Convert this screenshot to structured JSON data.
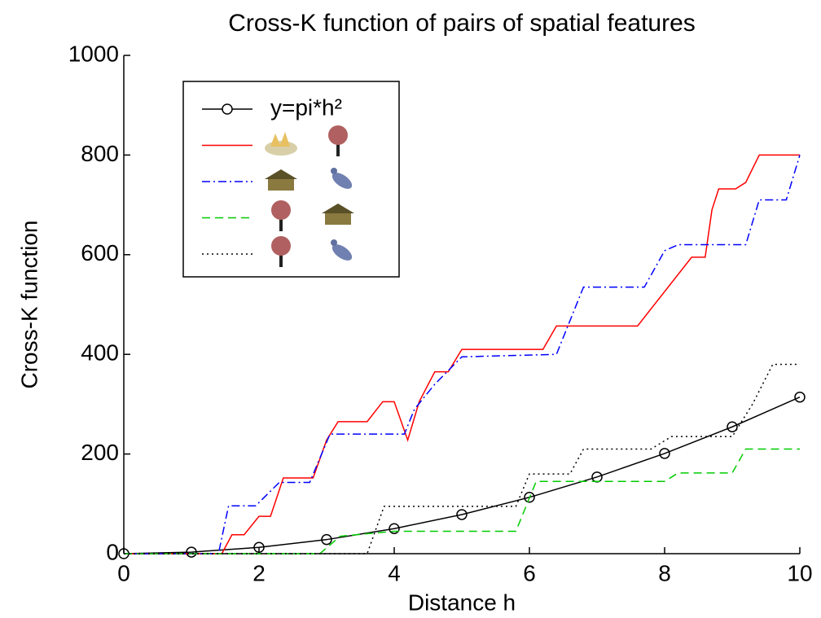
{
  "chart_data": {
    "type": "line",
    "title": "Cross-K function of pairs of spatial features",
    "x_label": "Distance h",
    "y_label": "Cross-K function",
    "xlim": [
      0,
      10
    ],
    "xticks": [
      0,
      2,
      4,
      6,
      8,
      10
    ],
    "ylim": [
      0,
      1000
    ],
    "yticks": [
      0,
      200,
      400,
      600,
      800,
      1000
    ],
    "grid": false,
    "legend": "upper-left",
    "series": [
      {
        "name": "y=pi*h²",
        "color": "#000000",
        "linestyle": "solid",
        "marker": "o",
        "x": [
          0,
          1,
          2,
          3,
          4,
          5,
          6,
          7,
          8,
          9,
          10
        ],
        "values": [
          0,
          3.14,
          12.6,
          28.3,
          50.3,
          78.5,
          113.1,
          153.9,
          201.1,
          254.5,
          314.2
        ]
      },
      {
        "color": "#ff0000",
        "linestyle": "solid",
        "x": [
          0,
          1.45,
          1.6,
          1.78,
          2.0,
          2.17,
          2.36,
          2.8,
          3.0,
          3.17,
          3.6,
          3.83,
          4.0,
          4.2,
          4.37,
          4.6,
          4.8,
          5.0,
          6.2,
          6.4,
          7.6,
          8.4,
          8.6,
          8.7,
          8.8,
          9.05,
          9.2,
          9.4,
          10
        ],
        "values": [
          0,
          0,
          38,
          38,
          75,
          75,
          152,
          152,
          228,
          265,
          265,
          305,
          305,
          228,
          305,
          365,
          365,
          410,
          410,
          457,
          457,
          595,
          595,
          690,
          732,
          732,
          745,
          800,
          800
        ]
      },
      {
        "color": "#0000ff",
        "linestyle": "dashdot",
        "x": [
          0,
          1.4,
          1.55,
          1.95,
          2.3,
          2.75,
          3.05,
          4.15,
          4.3,
          4.6,
          5.0,
          6.4,
          6.8,
          7.7,
          8.0,
          8.2,
          9.2,
          9.4,
          9.8,
          10
        ],
        "values": [
          0,
          0,
          96,
          96,
          143,
          143,
          240,
          240,
          290,
          340,
          395,
          400,
          535,
          535,
          608,
          620,
          620,
          710,
          710,
          800
        ]
      },
      {
        "color": "#00cc00",
        "linestyle": "dashed",
        "x": [
          0,
          2.9,
          3.2,
          4.0,
          5.8,
          6.1,
          8.0,
          8.2,
          9.0,
          9.2,
          10
        ],
        "values": [
          0,
          0,
          35,
          45,
          45,
          145,
          145,
          162,
          162,
          210,
          210
        ]
      },
      {
        "color": "#000000",
        "linestyle": "dotted",
        "x": [
          0,
          3.6,
          3.85,
          5.8,
          6.0,
          6.6,
          6.8,
          7.8,
          8.1,
          9.0,
          9.3,
          9.6,
          10
        ],
        "values": [
          0,
          0,
          95,
          95,
          160,
          160,
          210,
          210,
          235,
          235,
          300,
          380,
          380
        ]
      }
    ]
  }
}
